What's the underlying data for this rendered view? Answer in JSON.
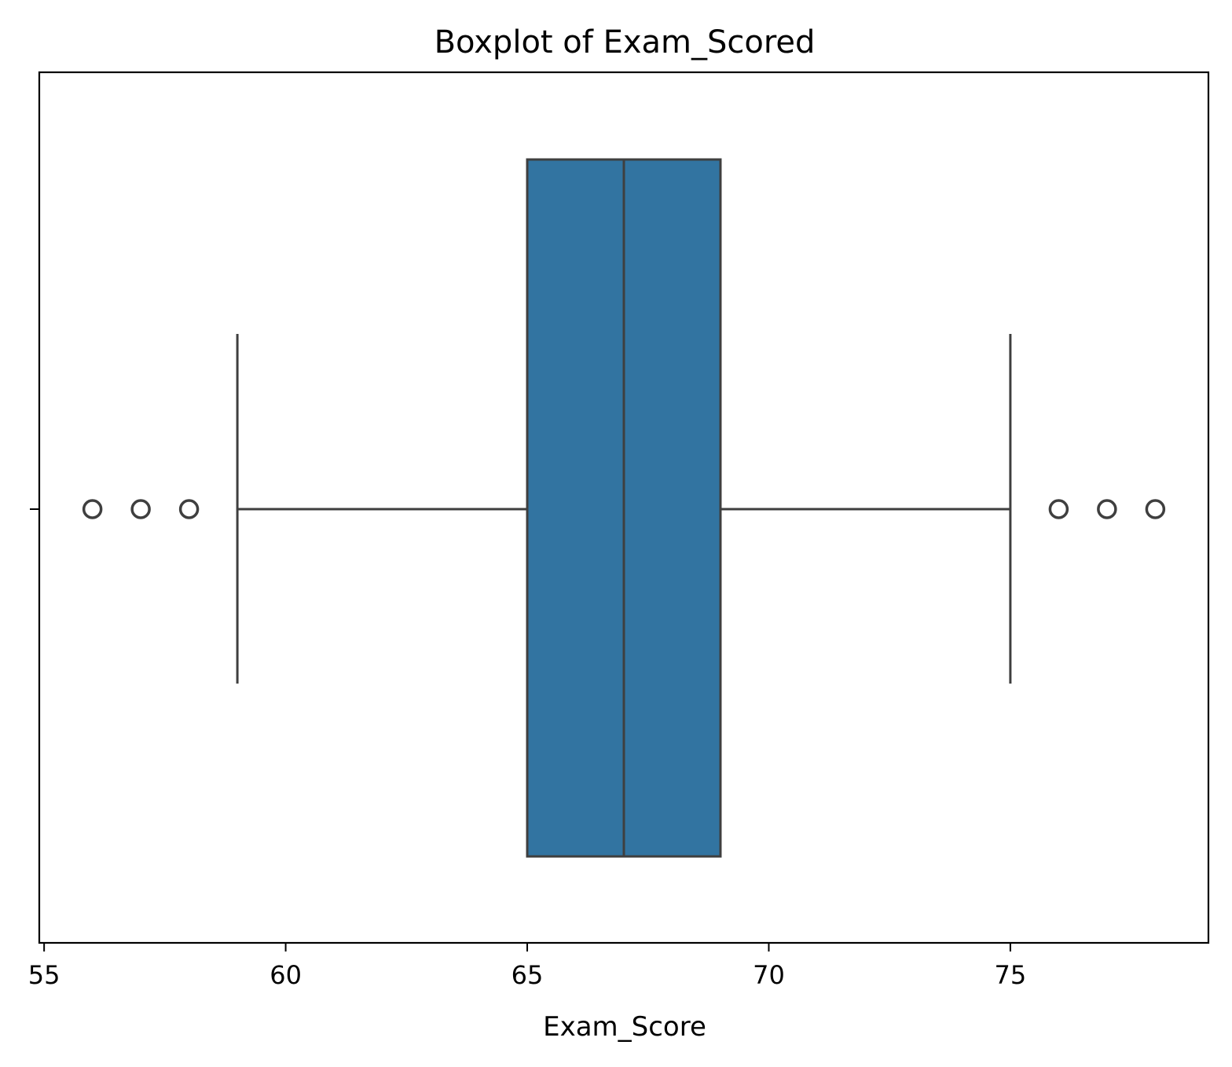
{
  "chart_data": {
    "type": "box",
    "title": "Boxplot of Exam_Scored",
    "xlabel": "Exam_Score",
    "ylabel": "",
    "orientation": "horizontal",
    "xlim": [
      54.9,
      79.1
    ],
    "xticks": [
      55,
      60,
      65,
      70,
      75
    ],
    "xtick_labels": [
      "55",
      "60",
      "65",
      "70",
      "75"
    ],
    "box": {
      "whisker_low": 59,
      "q1": 65,
      "median": 67,
      "q3": 69,
      "whisker_high": 75
    },
    "outliers": [
      56,
      57,
      58,
      76,
      77,
      78
    ],
    "colors": {
      "box_fill": "#3274a1",
      "line": "#3f3f3f",
      "frame": "#000000"
    },
    "grid": false
  }
}
